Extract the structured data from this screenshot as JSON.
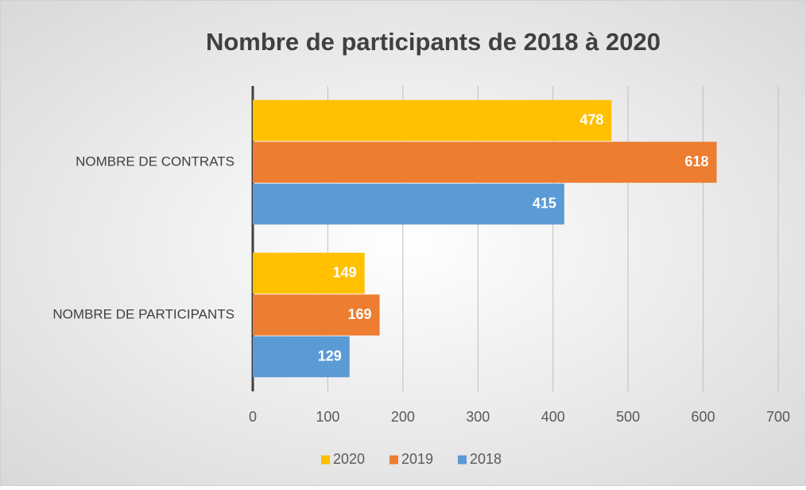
{
  "chart_data": {
    "type": "barh",
    "title": "Nombre de participants de 2018 à 2020",
    "categories": [
      "NOMBRE DE CONTRATS",
      "NOMBRE DE PARTICIPANTS"
    ],
    "series": [
      {
        "name": "2020",
        "color": "#ffc000",
        "values": [
          478,
          149
        ]
      },
      {
        "name": "2019",
        "color": "#ed7d31",
        "values": [
          618,
          169
        ]
      },
      {
        "name": "2018",
        "color": "#5b9bd5",
        "values": [
          415,
          129
        ]
      }
    ],
    "xlim": [
      0,
      700
    ],
    "xticks": [
      0,
      100,
      200,
      300,
      400,
      500,
      600,
      700
    ],
    "grid": true,
    "legend": "bottom"
  }
}
